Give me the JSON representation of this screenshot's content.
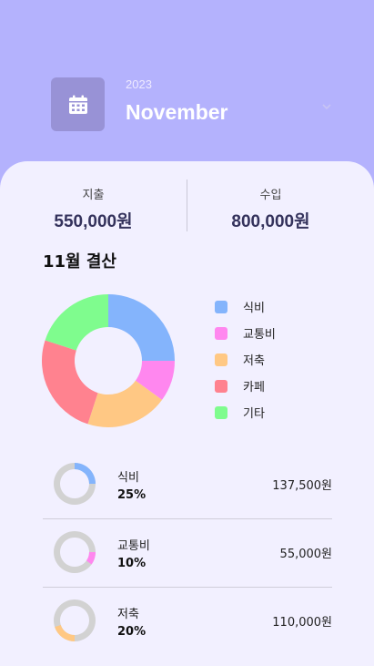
{
  "header": {
    "year": "2023",
    "month": "November",
    "calendar_icon": "calendar-icon",
    "chevron_icon": "chevron-down-icon"
  },
  "summary": {
    "expense_label": "지출",
    "expense_value": "550,000원",
    "income_label": "수입",
    "income_value": "800,000원"
  },
  "section_title": "11월 결산",
  "colors": {
    "food": "#84b4fc",
    "transport": "#ff87ef",
    "savings": "#ffc884",
    "cafe": "#ff828f",
    "other": "#7ffc8e",
    "ring_track": "#d2d2d2"
  },
  "legend": [
    {
      "label": "식비",
      "color": "#84b4fc"
    },
    {
      "label": "교통비",
      "color": "#ff87ef"
    },
    {
      "label": "저축",
      "color": "#ffc884"
    },
    {
      "label": "카페",
      "color": "#ff828f"
    },
    {
      "label": "기타",
      "color": "#7ffc8e"
    }
  ],
  "chart_data": {
    "type": "pie",
    "categories": [
      "식비",
      "교통비",
      "저축",
      "카페",
      "기타"
    ],
    "values": [
      25,
      10,
      20,
      25,
      20
    ],
    "donut": true
  },
  "breakdown": [
    {
      "name": "식비",
      "percent": "25%",
      "amount": "137,500원",
      "fraction": 0.25,
      "color": "#84b4fc"
    },
    {
      "name": "교통비",
      "percent": "10%",
      "amount": "55,000원",
      "fraction": 0.1,
      "color": "#ff87ef"
    },
    {
      "name": "저축",
      "percent": "20%",
      "amount": "110,000원",
      "fraction": 0.2,
      "color": "#ffc884"
    }
  ]
}
